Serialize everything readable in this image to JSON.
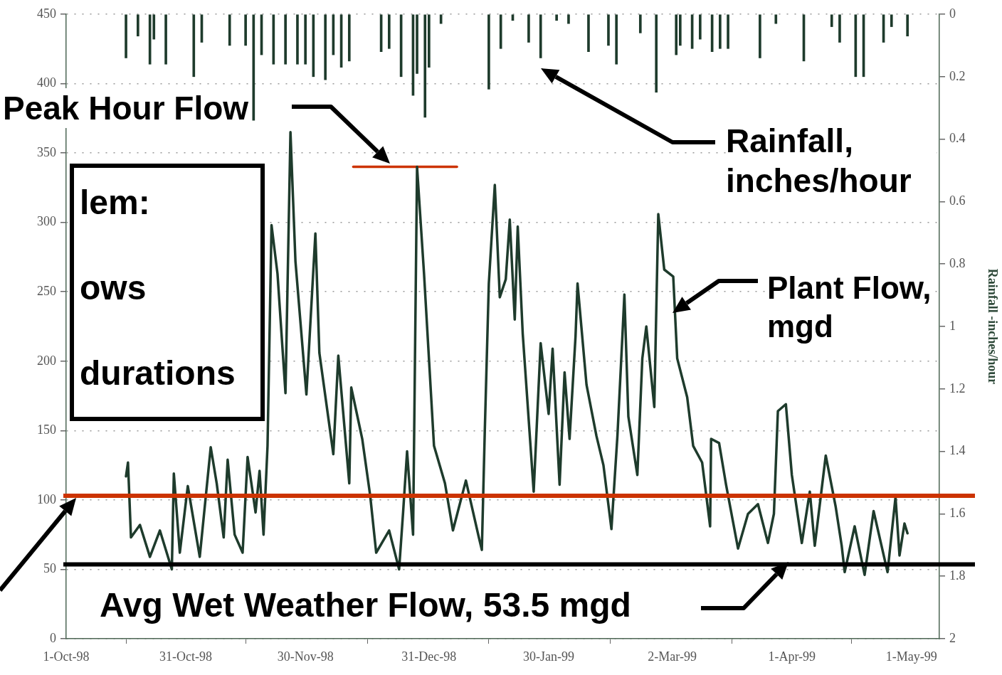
{
  "chart_data": {
    "type": "line",
    "y2label": "Rainfall -inches/hour",
    "xlim": [
      "1998-10-01",
      "1999-05-08"
    ],
    "xticks": [
      {
        "value": "1998-10-01",
        "label": "1-Oct-98"
      },
      {
        "value": "1998-10-31",
        "label": "31-Oct-98"
      },
      {
        "value": "1998-11-30",
        "label": "30-Nov-98"
      },
      {
        "value": "1998-12-31",
        "label": "31-Dec-98"
      },
      {
        "value": "1999-01-30",
        "label": "30-Jan-99"
      },
      {
        "value": "1999-03-02",
        "label": "2-Mar-99"
      },
      {
        "value": "1999-04-01",
        "label": "1-Apr-99"
      },
      {
        "value": "1999-05-01",
        "label": "1-May-99"
      }
    ],
    "ylim": [
      0,
      450
    ],
    "yticks": [
      0,
      50,
      100,
      150,
      200,
      250,
      300,
      350,
      400,
      450
    ],
    "y2lim": [
      2,
      0
    ],
    "y2ticks": [
      0,
      0.2,
      0.4,
      0.6,
      0.8,
      1,
      1.2,
      1.4,
      1.6,
      1.8,
      2
    ],
    "grid": "y",
    "marker": "none",
    "line_style": "solid",
    "series": [
      {
        "type": "bar",
        "axis": "y2",
        "color": "#1e3b2c",
        "x": [
          "1998-10-16",
          "1998-10-19",
          "1998-10-22",
          "1998-10-23",
          "1998-10-26",
          "1998-11-02",
          "1998-11-04",
          "1998-11-11",
          "1998-11-15",
          "1998-11-17",
          "1998-11-19",
          "1998-11-22",
          "1998-11-25",
          "1998-11-28",
          "1998-11-30",
          "1998-12-02",
          "1998-12-05",
          "1998-12-07",
          "1998-12-09",
          "1998-12-11",
          "1998-12-19",
          "1998-12-21",
          "1998-12-24",
          "1998-12-27",
          "1998-12-28",
          "1998-12-30",
          "1998-12-31",
          "1999-01-03",
          "1999-01-15",
          "1999-01-18",
          "1999-01-21",
          "1999-01-25",
          "1999-01-28",
          "1999-02-01",
          "1999-02-04",
          "1999-02-09",
          "1999-02-14",
          "1999-02-16",
          "1999-02-22",
          "1999-02-26",
          "1999-03-03",
          "1999-03-04",
          "1999-03-07",
          "1999-03-09",
          "1999-03-12",
          "1999-03-14",
          "1999-03-16",
          "1999-03-24",
          "1999-03-28",
          "1999-04-04",
          "1999-04-11",
          "1999-04-13",
          "1999-04-17",
          "1999-04-19",
          "1999-04-24",
          "1999-04-26",
          "1999-04-30"
        ],
        "values": [
          0.14,
          0.07,
          0.16,
          0.08,
          0.16,
          0.2,
          0.09,
          0.1,
          0.1,
          0.34,
          0.13,
          0.16,
          0.16,
          0.16,
          0.16,
          0.2,
          0.21,
          0.13,
          0.17,
          0.15,
          0.12,
          0.11,
          0.2,
          0.26,
          0.19,
          0.33,
          0.17,
          0.03,
          0.24,
          0.11,
          0.02,
          0.09,
          0.14,
          0.02,
          0.03,
          0.12,
          0.1,
          0.16,
          0.06,
          0.25,
          0.13,
          0.1,
          0.11,
          0.08,
          0.12,
          0.11,
          0.11,
          0.14,
          0.03,
          0.15,
          0.04,
          0.09,
          0.2,
          0.2,
          0.09,
          0.04,
          0.07
        ]
      },
      {
        "color": "#1e3b2c",
        "x": [
          "1998-10-16T00:00",
          "1998-10-16T12:00",
          "1998-10-17T06:00",
          "1998-10-19T12:00",
          "1998-10-22T00:00",
          "1998-10-24T12:00",
          "1998-10-27T12:00",
          "1998-10-28T00:00",
          "1998-10-29T12:00",
          "1998-10-31T12:00",
          "1998-11-03T12:00",
          "1998-11-06T06:00",
          "1998-11-07T18:00",
          "1998-11-09T12:00",
          "1998-11-10T12:00",
          "1998-11-12T06:00",
          "1998-11-14T06:00",
          "1998-11-15T12:00",
          "1998-11-17T12:00",
          "1998-11-18T12:00",
          "1998-11-19T12:00",
          "1998-11-20T12:00",
          "1998-11-21T12:00",
          "1998-11-23T00:00",
          "1998-11-25T00:00",
          "1998-11-26T06:00",
          "1998-11-27T12:00",
          "1998-11-30T06:00",
          "1998-12-02T12:00",
          "1998-12-03T12:00",
          "1998-12-07T00:00",
          "1998-12-08T06:00",
          "1998-12-11T00:00",
          "1998-12-11T12:00",
          "1998-12-14T06:00",
          "1998-12-16T06:00",
          "1998-12-17T18:00",
          "1998-12-21T00:00",
          "1998-12-23T12:00",
          "1998-12-24T12:00",
          "1998-12-25T12:00",
          "1998-12-27T00:00",
          "1998-12-28T00:00",
          "1998-12-29T18:00",
          "1999-01-01T06:00",
          "1999-01-04T00:00",
          "1999-01-06T00:00",
          "1999-01-09T06:00",
          "1999-01-12T12:00",
          "1999-01-13T06:00",
          "1999-01-14T00:00",
          "1999-01-15T00:00",
          "1999-01-16T12:00",
          "1999-01-17T18:00",
          "1999-01-19T06:00",
          "1999-01-20T06:00",
          "1999-01-21T12:00",
          "1999-01-22T06:00",
          "1999-01-23T12:00",
          "1999-01-26T06:00",
          "1999-01-28T00:00",
          "1999-01-30T00:00",
          "1999-01-31T00:00",
          "1999-02-01T18:00",
          "1999-02-03T00:00",
          "1999-02-04T06:00",
          "1999-02-05T18:00",
          "1999-02-06T06:00",
          "1999-02-08T12:00",
          "1999-02-11T00:00",
          "1999-02-12T18:00",
          "1999-02-14T18:00",
          "1999-02-16T06:00",
          "1999-02-17T12:00",
          "1999-02-18T00:00",
          "1999-02-19T00:00",
          "1999-02-21T06:00",
          "1999-02-22T12:00",
          "1999-02-23T12:00",
          "1999-02-25T12:00",
          "1999-02-26T12:00",
          "1999-02-28T00:00",
          "1999-03-02T06:00",
          "1999-03-03T06:00",
          "1999-03-05T18:00",
          "1999-03-07T06:00",
          "1999-03-09T12:00",
          "1999-03-11T12:00",
          "1999-03-11T18:00",
          "1999-03-13T18:00",
          "1999-03-15T12:00",
          "1999-03-18T12:00",
          "1999-03-21T00:00",
          "1999-03-23T12:00",
          "1999-03-26T00:00",
          "1999-03-27T12:00",
          "1999-03-28T12:00",
          "1999-03-30T12:00",
          "1999-04-01T00:00",
          "1999-04-03T12:00",
          "1999-04-05T12:00",
          "1999-04-06T18:00",
          "1999-04-09T12:00",
          "1999-04-12T00:00",
          "1999-04-13T12:00",
          "1999-04-14T06:00",
          "1999-04-16T18:00",
          "1999-04-19T06:00",
          "1999-04-21T12:00",
          "1999-04-25T00:00",
          "1999-04-27T00:00",
          "1999-04-28T00:00",
          "1999-04-29T06:00",
          "1999-04-30T00:00"
        ],
        "values": [
          117,
          127,
          73,
          82,
          59,
          78,
          50,
          119,
          62,
          110,
          59,
          138,
          112,
          73,
          129,
          75,
          62,
          131,
          91,
          121,
          75,
          139,
          298,
          263,
          177,
          365,
          272,
          176,
          292,
          206,
          133,
          204,
          112,
          181,
          144,
          103,
          62,
          78,
          50,
          91,
          135,
          75,
          340,
          263,
          139,
          112,
          78,
          114,
          73,
          64,
          151,
          256,
          327,
          246,
          259,
          302,
          230,
          297,
          220,
          106,
          213,
          162,
          209,
          111,
          192,
          144,
          218,
          256,
          183,
          146,
          125,
          79,
          146,
          218,
          248,
          160,
          118,
          202,
          225,
          167,
          306,
          266,
          261,
          202,
          174,
          139,
          127,
          81,
          144,
          141,
          111,
          65,
          90,
          97,
          69,
          90,
          164,
          169,
          118,
          69,
          106,
          67,
          132,
          95,
          67,
          48,
          81,
          46,
          92,
          48,
          102,
          60,
          83,
          76
        ]
      },
      {
        "type": "line",
        "color": "#cc3300",
        "x": [
          "1998-12-12",
          "1999-01-07"
        ],
        "values": [
          340,
          340
        ]
      }
    ],
    "ref_lines": [
      {
        "axis": "y",
        "value": 103,
        "color": "#cc3300"
      },
      {
        "axis": "y",
        "value": 53.5,
        "label": "Avg Wet Weather Flow, 53.5 mgd",
        "color": "#000000"
      }
    ],
    "annotations": [
      "Peak Hour Flow",
      "Rainfall, inches/hour",
      "Plant Flow, mgd",
      "lem:",
      "ows",
      "durations"
    ]
  }
}
